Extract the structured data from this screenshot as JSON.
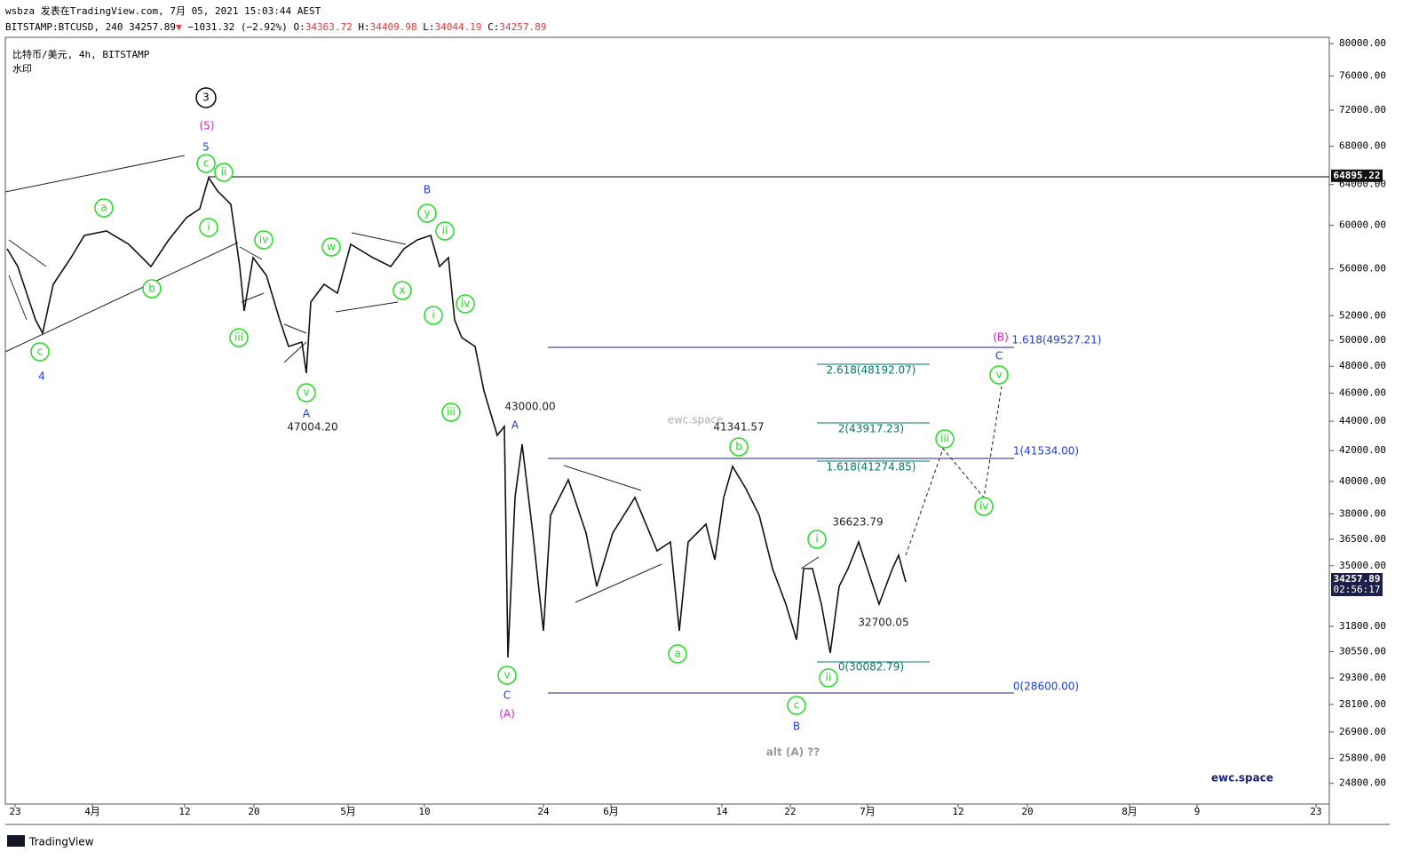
{
  "header": {
    "title_line": "wsbza 发表在TradingView.com, 7月 05, 2021 15:03:44 AEST",
    "symbol": "BITSTAMP:BTCUSD, 240 34257.89",
    "arrow": "▼",
    "change": "−1031.32 (−2.92%)",
    "o_key": "O:",
    "o": "34363.72",
    "h_key": "H:",
    "h": "34409.98",
    "l_key": "L:",
    "l": "34044.19",
    "c_key": "C:",
    "c": "34257.89"
  },
  "legend": {
    "pair": "比特币/美元, 4h, BITSTAMP",
    "watermark_label": "水印"
  },
  "price_axis": {
    "ylim": [
      24000,
      80800
    ],
    "log": true,
    "yticks": [
      {
        "value": 80000,
        "label": "80000.00"
      },
      {
        "value": 76000,
        "label": "76000.00"
      },
      {
        "value": 72000,
        "label": "72000.00"
      },
      {
        "value": 68000,
        "label": "68000.00"
      },
      {
        "value": 64000,
        "label": "64000.00"
      },
      {
        "value": 60000,
        "label": "60000.00"
      },
      {
        "value": 56000,
        "label": "56000.00"
      },
      {
        "value": 52000,
        "label": "52000.00"
      },
      {
        "value": 50000,
        "label": "50000.00"
      },
      {
        "value": 48000,
        "label": "48000.00"
      },
      {
        "value": 46000,
        "label": "46000.00"
      },
      {
        "value": 44000,
        "label": "44000.00"
      },
      {
        "value": 42000,
        "label": "42000.00"
      },
      {
        "value": 40000,
        "label": "40000.00"
      },
      {
        "value": 38000,
        "label": "38000.00"
      },
      {
        "value": 36500,
        "label": "36500.00"
      },
      {
        "value": 35000,
        "label": "35000.00"
      },
      {
        "value": 31800,
        "label": "31800.00"
      },
      {
        "value": 30550,
        "label": "30550.00"
      },
      {
        "value": 29300,
        "label": "29300.00"
      },
      {
        "value": 28100,
        "label": "28100.00"
      },
      {
        "value": 26900,
        "label": "26900.00"
      },
      {
        "value": 25800,
        "label": "25800.00"
      },
      {
        "value": 24800,
        "label": "24800.00"
      }
    ],
    "badges": [
      {
        "value": 64895.22,
        "label": "64895.22"
      },
      {
        "value": 34257.89,
        "label": "34257.89",
        "countdown": "02:56:17"
      }
    ]
  },
  "time_axis": [
    "23",
    "4月",
    "12",
    "20",
    "5月",
    "10",
    "24",
    "6月",
    "14",
    "22",
    "7月",
    "12",
    "20",
    "8月",
    "9",
    "23"
  ],
  "annotations": [
    "3",
    "(5)",
    "5",
    "c",
    "ii",
    "i",
    "a",
    "b",
    "c",
    "4",
    "iv",
    "iii",
    "v",
    "A",
    "47004.20",
    "w",
    "x",
    "y",
    "B",
    "ii",
    "i",
    "iv",
    "iii",
    "43000.00",
    "A",
    "v",
    "C",
    "(A)",
    "41341.57",
    "b",
    "a",
    "c",
    "B",
    "alt (A) ??",
    "i",
    "36623.79",
    "32700.05",
    "ii",
    "iii",
    "iv",
    "v",
    "C",
    "(B)",
    "ewc.space",
    "ewc.space"
  ],
  "fib_labels": [
    "1.618(49527.21)",
    "2.618(48192.07)",
    "2(43917.23)",
    "1(41534.00)",
    "1.618(41274.85)",
    "0(30082.79)",
    "0(28600.00)"
  ],
  "footer": "TradingView"
}
